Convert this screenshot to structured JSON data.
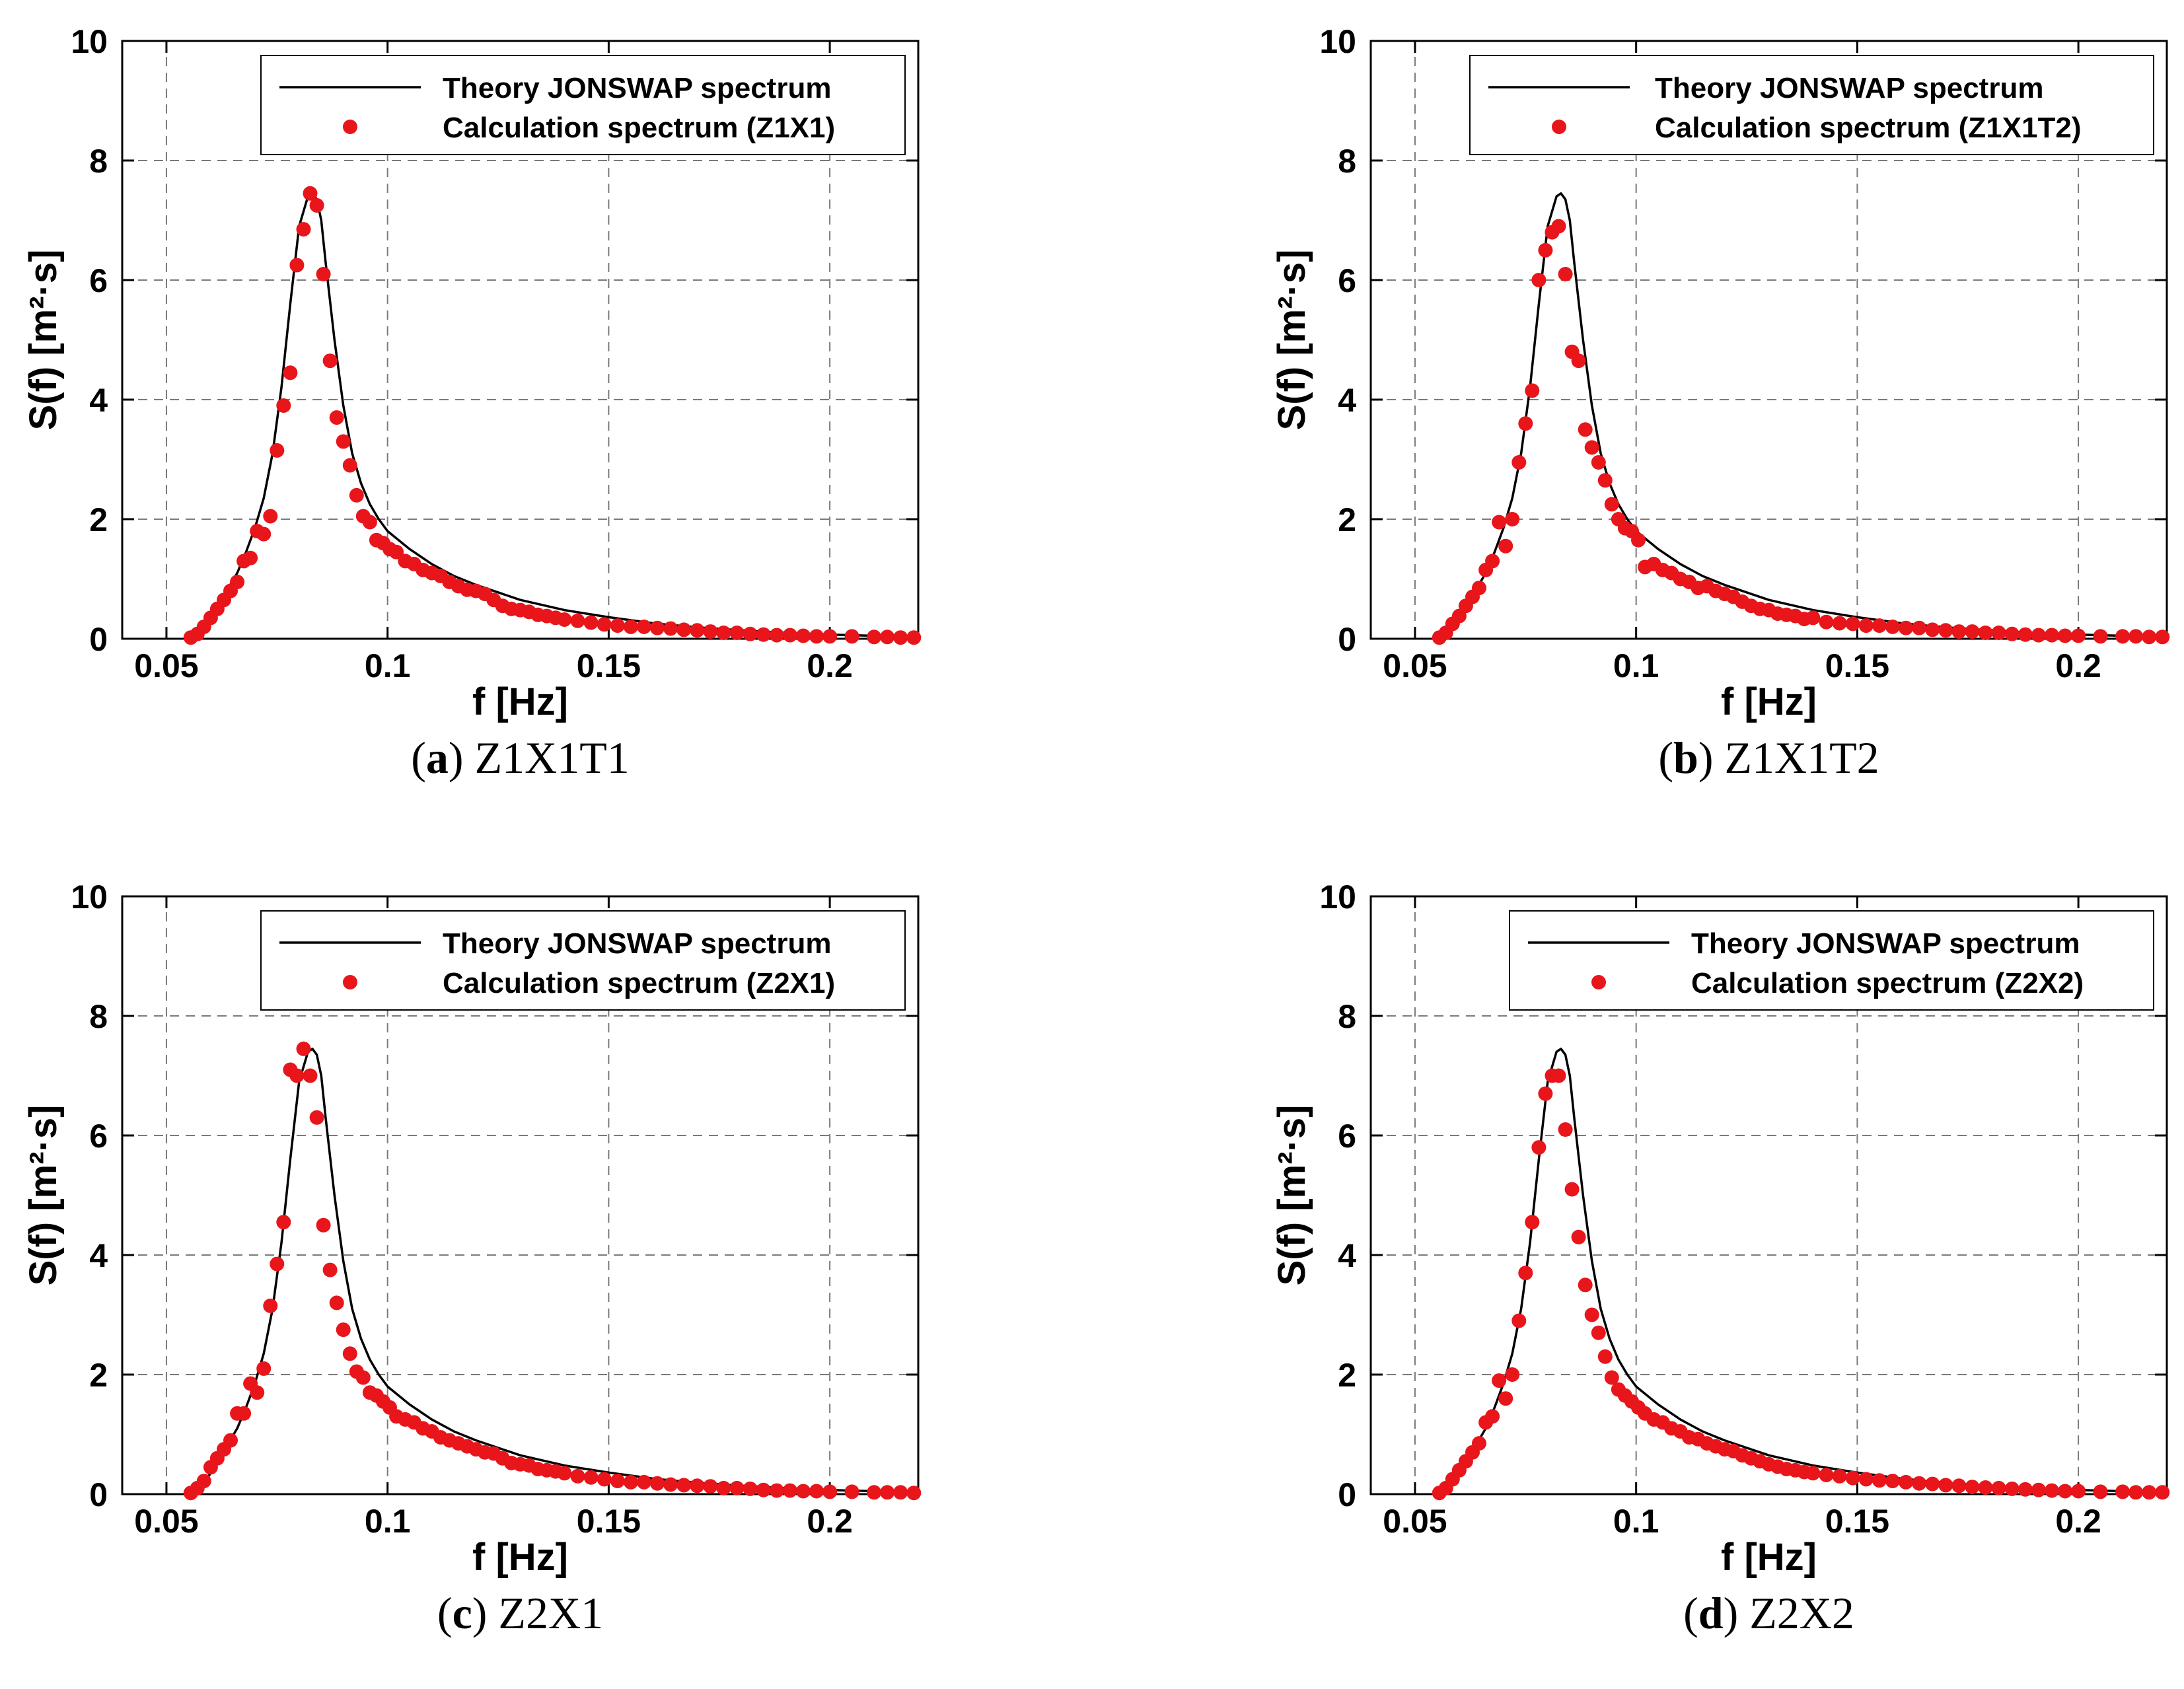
{
  "colors": {
    "theory": "#000000",
    "calculation": "#e8151b",
    "grid": "#7a7a7a",
    "axis": "#000000"
  },
  "common": {
    "xlabel": "f [Hz]",
    "ylabel": "S(f) [m²·s]",
    "xlim": [
      0.04,
      0.22
    ],
    "ylim": [
      0,
      10
    ],
    "xticks": [
      0.05,
      0.1,
      0.15,
      0.2
    ],
    "xtick_labels": [
      "0.05",
      "0.1",
      "0.15",
      "0.2"
    ],
    "yticks": [
      0,
      2,
      4,
      6,
      8,
      10
    ],
    "ytick_labels": [
      "0",
      "2",
      "4",
      "6",
      "8",
      "10"
    ],
    "grid": "dashed",
    "legend_position": "top-right"
  },
  "chart_data": [
    {
      "type": "line+scatter",
      "caption_letter": "(a)",
      "caption_name": "Z1X1T1",
      "xlabel": "f [Hz]",
      "ylabel": "S(f) [m²·s]",
      "legend": [
        "Theory JONSWAP spectrum",
        "Calculation spectrum (Z1X1)"
      ],
      "series": [
        {
          "name": "Theory JONSWAP spectrum",
          "kind": "line",
          "x": [
            0.055,
            0.058,
            0.06,
            0.062,
            0.064,
            0.066,
            0.068,
            0.07,
            0.072,
            0.074,
            0.076,
            0.078,
            0.08,
            0.082,
            0.083,
            0.084,
            0.085,
            0.086,
            0.088,
            0.09,
            0.092,
            0.094,
            0.096,
            0.098,
            0.1,
            0.105,
            0.11,
            0.115,
            0.12,
            0.13,
            0.14,
            0.15,
            0.16,
            0.17,
            0.18,
            0.19,
            0.2,
            0.21,
            0.22
          ],
          "y": [
            0.0,
            0.15,
            0.35,
            0.6,
            0.85,
            1.1,
            1.45,
            1.85,
            2.35,
            3.1,
            4.2,
            5.6,
            6.9,
            7.4,
            7.45,
            7.35,
            7.0,
            6.3,
            5.0,
            3.9,
            3.1,
            2.6,
            2.25,
            2.0,
            1.8,
            1.5,
            1.25,
            1.05,
            0.9,
            0.65,
            0.48,
            0.36,
            0.26,
            0.19,
            0.14,
            0.1,
            0.07,
            0.05,
            0.03
          ]
        },
        {
          "name": "Calculation spectrum (Z1X1)",
          "kind": "scatter",
          "x": [
            0.0555,
            0.057,
            0.0585,
            0.06,
            0.0615,
            0.063,
            0.0645,
            0.066,
            0.0675,
            0.069,
            0.0705,
            0.072,
            0.0735,
            0.075,
            0.0765,
            0.078,
            0.0795,
            0.081,
            0.0825,
            0.084,
            0.0855,
            0.087,
            0.0885,
            0.09,
            0.0915,
            0.093,
            0.0945,
            0.096,
            0.0975,
            0.099,
            0.1005,
            0.102,
            0.104,
            0.106,
            0.108,
            0.11,
            0.112,
            0.114,
            0.116,
            0.118,
            0.12,
            0.122,
            0.124,
            0.126,
            0.128,
            0.13,
            0.132,
            0.134,
            0.136,
            0.138,
            0.14,
            0.143,
            0.146,
            0.149,
            0.152,
            0.155,
            0.158,
            0.161,
            0.164,
            0.167,
            0.17,
            0.173,
            0.176,
            0.179,
            0.182,
            0.185,
            0.188,
            0.191,
            0.194,
            0.197,
            0.2,
            0.205,
            0.21,
            0.213,
            0.216,
            0.219
          ],
          "y": [
            0.02,
            0.08,
            0.2,
            0.35,
            0.5,
            0.65,
            0.8,
            0.95,
            1.3,
            1.35,
            1.8,
            1.75,
            2.05,
            3.15,
            3.9,
            4.45,
            6.25,
            6.85,
            7.45,
            7.25,
            6.1,
            4.65,
            3.7,
            3.3,
            2.9,
            2.4,
            2.05,
            1.95,
            1.65,
            1.6,
            1.5,
            1.45,
            1.3,
            1.25,
            1.15,
            1.1,
            1.05,
            0.95,
            0.88,
            0.82,
            0.8,
            0.75,
            0.65,
            0.55,
            0.5,
            0.48,
            0.45,
            0.4,
            0.38,
            0.35,
            0.32,
            0.3,
            0.27,
            0.24,
            0.22,
            0.2,
            0.2,
            0.18,
            0.17,
            0.15,
            0.14,
            0.12,
            0.1,
            0.1,
            0.08,
            0.07,
            0.06,
            0.06,
            0.05,
            0.04,
            0.04,
            0.04,
            0.03,
            0.03,
            0.02,
            0.02
          ]
        }
      ]
    },
    {
      "type": "line+scatter",
      "caption_letter": "(b)",
      "caption_name": "Z1X1T2",
      "xlabel": "f [Hz]",
      "ylabel": "S(f) [m²·s]",
      "legend": [
        "Theory JONSWAP spectrum",
        "Calculation spectrum (Z1X1T2)"
      ],
      "series": [
        {
          "name": "Theory JONSWAP spectrum",
          "kind": "line",
          "x": [
            0.055,
            0.058,
            0.06,
            0.062,
            0.064,
            0.066,
            0.068,
            0.07,
            0.072,
            0.074,
            0.076,
            0.078,
            0.08,
            0.082,
            0.083,
            0.084,
            0.085,
            0.086,
            0.088,
            0.09,
            0.092,
            0.094,
            0.096,
            0.098,
            0.1,
            0.105,
            0.11,
            0.115,
            0.12,
            0.13,
            0.14,
            0.15,
            0.16,
            0.17,
            0.18,
            0.19,
            0.2,
            0.21,
            0.22
          ],
          "y": [
            0.0,
            0.15,
            0.35,
            0.6,
            0.85,
            1.1,
            1.45,
            1.85,
            2.35,
            3.1,
            4.2,
            5.6,
            6.9,
            7.4,
            7.45,
            7.35,
            7.0,
            6.3,
            5.0,
            3.9,
            3.1,
            2.6,
            2.25,
            2.0,
            1.8,
            1.5,
            1.25,
            1.05,
            0.9,
            0.65,
            0.48,
            0.36,
            0.26,
            0.19,
            0.14,
            0.1,
            0.07,
            0.05,
            0.03
          ]
        },
        {
          "name": "Calculation spectrum (Z1X1T2)",
          "kind": "scatter",
          "x": [
            0.0555,
            0.057,
            0.0585,
            0.06,
            0.0615,
            0.063,
            0.0645,
            0.066,
            0.0675,
            0.069,
            0.0705,
            0.072,
            0.0735,
            0.075,
            0.0765,
            0.078,
            0.0795,
            0.081,
            0.0825,
            0.084,
            0.0855,
            0.087,
            0.0885,
            0.09,
            0.0915,
            0.093,
            0.0945,
            0.096,
            0.0975,
            0.099,
            0.1005,
            0.102,
            0.104,
            0.106,
            0.108,
            0.11,
            0.112,
            0.114,
            0.116,
            0.118,
            0.12,
            0.122,
            0.124,
            0.126,
            0.128,
            0.13,
            0.132,
            0.134,
            0.136,
            0.138,
            0.14,
            0.143,
            0.146,
            0.149,
            0.152,
            0.155,
            0.158,
            0.161,
            0.164,
            0.167,
            0.17,
            0.173,
            0.176,
            0.179,
            0.182,
            0.185,
            0.188,
            0.191,
            0.194,
            0.197,
            0.2,
            0.205,
            0.21,
            0.213,
            0.216,
            0.219
          ],
          "y": [
            0.02,
            0.1,
            0.25,
            0.38,
            0.55,
            0.7,
            0.85,
            1.15,
            1.3,
            1.95,
            1.55,
            2.0,
            2.95,
            3.6,
            4.15,
            6.0,
            6.5,
            6.8,
            6.9,
            6.1,
            4.8,
            4.65,
            3.5,
            3.2,
            2.95,
            2.65,
            2.25,
            2.0,
            1.85,
            1.8,
            1.65,
            1.2,
            1.25,
            1.15,
            1.1,
            1.0,
            0.95,
            0.85,
            0.88,
            0.8,
            0.75,
            0.7,
            0.62,
            0.55,
            0.5,
            0.48,
            0.42,
            0.4,
            0.38,
            0.33,
            0.35,
            0.28,
            0.26,
            0.25,
            0.22,
            0.22,
            0.2,
            0.18,
            0.18,
            0.15,
            0.14,
            0.12,
            0.12,
            0.1,
            0.1,
            0.08,
            0.07,
            0.06,
            0.06,
            0.05,
            0.05,
            0.04,
            0.04,
            0.04,
            0.03,
            0.03
          ]
        }
      ]
    },
    {
      "type": "line+scatter",
      "caption_letter": "(c)",
      "caption_name": "Z2X1",
      "xlabel": "f [Hz]",
      "ylabel": "S(f) [m²·s]",
      "legend": [
        "Theory JONSWAP spectrum",
        "Calculation spectrum (Z2X1)"
      ],
      "series": [
        {
          "name": "Theory JONSWAP spectrum",
          "kind": "line",
          "x": [
            0.055,
            0.058,
            0.06,
            0.062,
            0.064,
            0.066,
            0.068,
            0.07,
            0.072,
            0.074,
            0.076,
            0.078,
            0.08,
            0.082,
            0.083,
            0.084,
            0.085,
            0.086,
            0.088,
            0.09,
            0.092,
            0.094,
            0.096,
            0.098,
            0.1,
            0.105,
            0.11,
            0.115,
            0.12,
            0.13,
            0.14,
            0.15,
            0.16,
            0.17,
            0.18,
            0.19,
            0.2,
            0.21,
            0.22
          ],
          "y": [
            0.0,
            0.15,
            0.35,
            0.6,
            0.85,
            1.1,
            1.45,
            1.85,
            2.35,
            3.1,
            4.2,
            5.6,
            6.9,
            7.4,
            7.45,
            7.35,
            7.0,
            6.3,
            5.0,
            3.9,
            3.1,
            2.6,
            2.25,
            2.0,
            1.8,
            1.5,
            1.25,
            1.05,
            0.9,
            0.65,
            0.48,
            0.36,
            0.26,
            0.19,
            0.14,
            0.1,
            0.07,
            0.05,
            0.03
          ]
        },
        {
          "name": "Calculation spectrum (Z2X1)",
          "kind": "scatter",
          "x": [
            0.0555,
            0.057,
            0.0585,
            0.06,
            0.0615,
            0.063,
            0.0645,
            0.066,
            0.0675,
            0.069,
            0.0705,
            0.072,
            0.0735,
            0.075,
            0.0765,
            0.078,
            0.0795,
            0.081,
            0.0825,
            0.084,
            0.0855,
            0.087,
            0.0885,
            0.09,
            0.0915,
            0.093,
            0.0945,
            0.096,
            0.0975,
            0.099,
            0.1005,
            0.102,
            0.104,
            0.106,
            0.108,
            0.11,
            0.112,
            0.114,
            0.116,
            0.118,
            0.12,
            0.122,
            0.124,
            0.126,
            0.128,
            0.13,
            0.132,
            0.134,
            0.136,
            0.138,
            0.14,
            0.143,
            0.146,
            0.149,
            0.152,
            0.155,
            0.158,
            0.161,
            0.164,
            0.167,
            0.17,
            0.173,
            0.176,
            0.179,
            0.182,
            0.185,
            0.188,
            0.191,
            0.194,
            0.197,
            0.2,
            0.205,
            0.21,
            0.213,
            0.216,
            0.219
          ],
          "y": [
            0.02,
            0.1,
            0.22,
            0.45,
            0.6,
            0.75,
            0.9,
            1.35,
            1.35,
            1.85,
            1.7,
            2.1,
            3.15,
            3.85,
            4.55,
            7.1,
            7.0,
            7.45,
            7.0,
            6.3,
            4.5,
            3.75,
            3.2,
            2.75,
            2.35,
            2.05,
            1.95,
            1.7,
            1.65,
            1.55,
            1.45,
            1.3,
            1.25,
            1.2,
            1.1,
            1.05,
            0.95,
            0.9,
            0.85,
            0.8,
            0.75,
            0.7,
            0.68,
            0.6,
            0.52,
            0.5,
            0.48,
            0.42,
            0.4,
            0.38,
            0.35,
            0.3,
            0.28,
            0.25,
            0.22,
            0.2,
            0.2,
            0.18,
            0.16,
            0.15,
            0.14,
            0.13,
            0.1,
            0.1,
            0.09,
            0.07,
            0.06,
            0.06,
            0.05,
            0.05,
            0.04,
            0.04,
            0.03,
            0.03,
            0.03,
            0.02
          ]
        }
      ]
    },
    {
      "type": "line+scatter",
      "caption_letter": "(d)",
      "caption_name": "Z2X2",
      "xlabel": "f [Hz]",
      "ylabel": "S(f) [m²·s]",
      "legend": [
        "Theory JONSWAP spectrum",
        "Calculation spectrum (Z2X2)"
      ],
      "series": [
        {
          "name": "Theory JONSWAP spectrum",
          "kind": "line",
          "x": [
            0.055,
            0.058,
            0.06,
            0.062,
            0.064,
            0.066,
            0.068,
            0.07,
            0.072,
            0.074,
            0.076,
            0.078,
            0.08,
            0.082,
            0.083,
            0.084,
            0.085,
            0.086,
            0.088,
            0.09,
            0.092,
            0.094,
            0.096,
            0.098,
            0.1,
            0.105,
            0.11,
            0.115,
            0.12,
            0.13,
            0.14,
            0.15,
            0.16,
            0.17,
            0.18,
            0.19,
            0.2,
            0.21,
            0.22
          ],
          "y": [
            0.0,
            0.15,
            0.35,
            0.6,
            0.85,
            1.1,
            1.45,
            1.85,
            2.35,
            3.1,
            4.2,
            5.6,
            6.9,
            7.4,
            7.45,
            7.35,
            7.0,
            6.3,
            5.0,
            3.9,
            3.1,
            2.6,
            2.25,
            2.0,
            1.8,
            1.5,
            1.25,
            1.05,
            0.9,
            0.65,
            0.48,
            0.36,
            0.26,
            0.19,
            0.14,
            0.1,
            0.07,
            0.05,
            0.03
          ]
        },
        {
          "name": "Calculation spectrum (Z2X2)",
          "kind": "scatter",
          "x": [
            0.0555,
            0.057,
            0.0585,
            0.06,
            0.0615,
            0.063,
            0.0645,
            0.066,
            0.0675,
            0.069,
            0.0705,
            0.072,
            0.0735,
            0.075,
            0.0765,
            0.078,
            0.0795,
            0.081,
            0.0825,
            0.084,
            0.0855,
            0.087,
            0.0885,
            0.09,
            0.0915,
            0.093,
            0.0945,
            0.096,
            0.0975,
            0.099,
            0.1005,
            0.102,
            0.104,
            0.106,
            0.108,
            0.11,
            0.112,
            0.114,
            0.116,
            0.118,
            0.12,
            0.122,
            0.124,
            0.126,
            0.128,
            0.13,
            0.132,
            0.134,
            0.136,
            0.138,
            0.14,
            0.143,
            0.146,
            0.149,
            0.152,
            0.155,
            0.158,
            0.161,
            0.164,
            0.167,
            0.17,
            0.173,
            0.176,
            0.179,
            0.182,
            0.185,
            0.188,
            0.191,
            0.194,
            0.197,
            0.2,
            0.205,
            0.21,
            0.213,
            0.216,
            0.219
          ],
          "y": [
            0.02,
            0.1,
            0.25,
            0.4,
            0.55,
            0.7,
            0.85,
            1.2,
            1.3,
            1.9,
            1.6,
            2.0,
            2.9,
            3.7,
            4.55,
            5.8,
            6.7,
            7.0,
            7.0,
            6.1,
            5.1,
            4.3,
            3.5,
            3.0,
            2.7,
            2.3,
            1.95,
            1.75,
            1.65,
            1.55,
            1.45,
            1.35,
            1.25,
            1.2,
            1.1,
            1.05,
            0.95,
            0.92,
            0.85,
            0.8,
            0.75,
            0.72,
            0.65,
            0.6,
            0.55,
            0.5,
            0.46,
            0.42,
            0.4,
            0.37,
            0.35,
            0.32,
            0.3,
            0.27,
            0.25,
            0.23,
            0.22,
            0.2,
            0.18,
            0.17,
            0.15,
            0.14,
            0.12,
            0.11,
            0.1,
            0.09,
            0.08,
            0.07,
            0.06,
            0.05,
            0.05,
            0.04,
            0.04,
            0.03,
            0.03,
            0.03
          ]
        }
      ]
    }
  ]
}
